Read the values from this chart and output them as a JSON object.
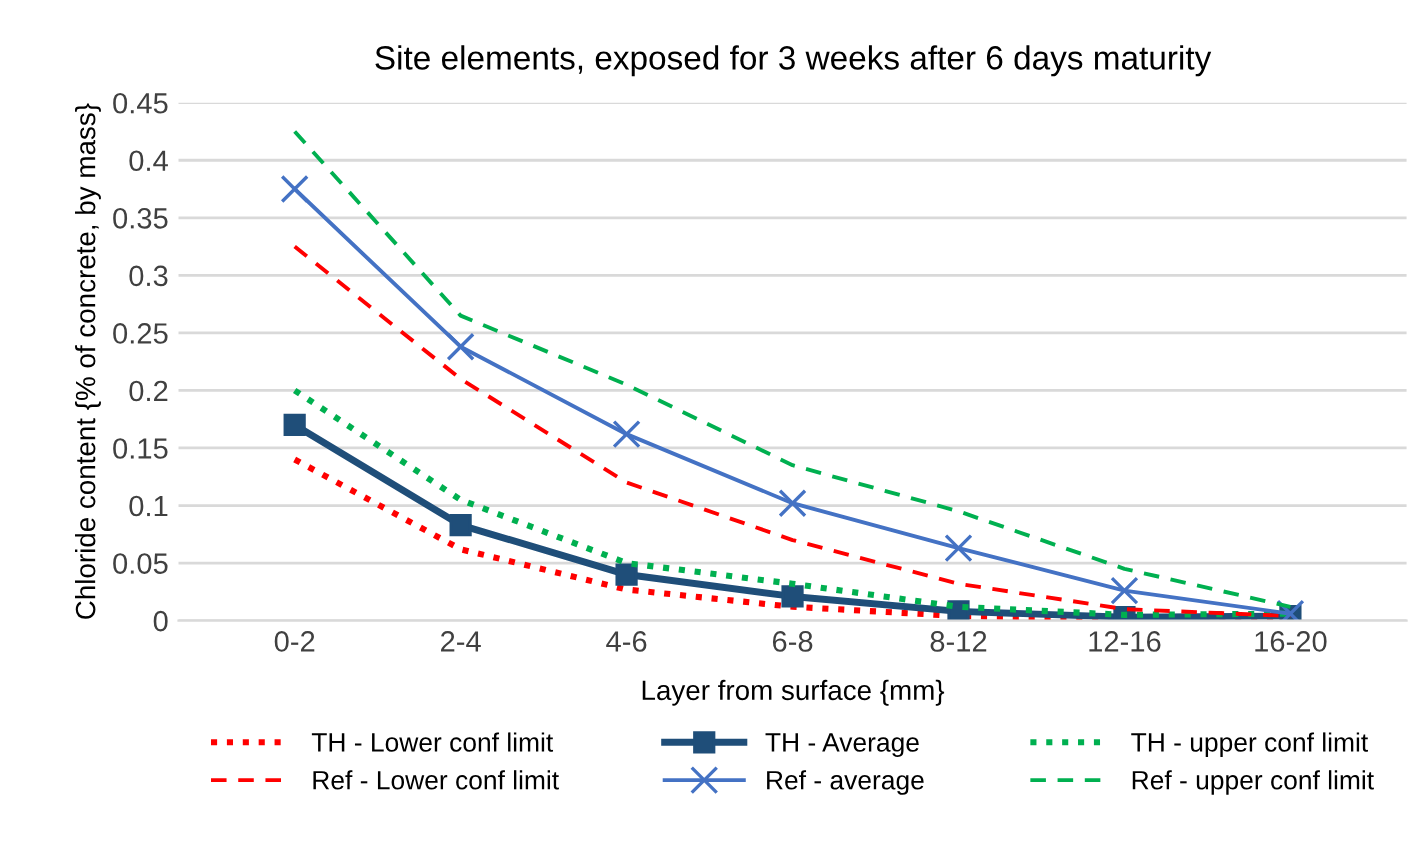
{
  "chart_data": {
    "type": "line",
    "title": "Site elements, exposed for 3 weeks after 6 days maturity",
    "xlabel": "Layer from surface {mm}",
    "ylabel": "Chloride content {% of concrete, by mass}",
    "categories": [
      "0-2",
      "2-4",
      "4-6",
      "6-8",
      "8-12",
      "12-16",
      "16-20"
    ],
    "series": [
      {
        "name": "TH - Lower conf limit",
        "color": "#ff0000",
        "line_style": "dotted",
        "marker": "none",
        "values": [
          0.14,
          0.062,
          0.027,
          0.012,
          0.004,
          0.002,
          0.002
        ]
      },
      {
        "name": "TH - Average",
        "color": "#1f4e79",
        "line_style": "solid",
        "marker": "square",
        "values": [
          0.17,
          0.083,
          0.04,
          0.021,
          0.008,
          0.003,
          0.004
        ]
      },
      {
        "name": "TH - upper conf limit",
        "color": "#00b050",
        "line_style": "dotted",
        "marker": "none",
        "values": [
          0.2,
          0.105,
          0.05,
          0.032,
          0.012,
          0.005,
          0.006
        ]
      },
      {
        "name": "Ref - Lower conf limit",
        "color": "#ff0000",
        "line_style": "dashed",
        "marker": "none",
        "values": [
          0.325,
          0.21,
          0.12,
          0.07,
          0.032,
          0.01,
          0.004
        ]
      },
      {
        "name": "Ref - average",
        "color": "#4472c4",
        "line_style": "solid",
        "marker": "cross",
        "values": [
          0.375,
          0.238,
          0.162,
          0.102,
          0.063,
          0.026,
          0.006
        ]
      },
      {
        "name": "Ref - upper conf limit",
        "color": "#00b050",
        "line_style": "dashed",
        "marker": "none",
        "values": [
          0.425,
          0.265,
          0.205,
          0.135,
          0.095,
          0.045,
          0.012
        ]
      }
    ],
    "ylim": [
      0,
      0.45
    ],
    "yticks": [
      {
        "value": 0,
        "label": "0"
      },
      0.05,
      0.1,
      0.15,
      0.2,
      0.25,
      0.3,
      0.35,
      0.4,
      0.45
    ],
    "grid": "y",
    "legend": "bottom"
  }
}
